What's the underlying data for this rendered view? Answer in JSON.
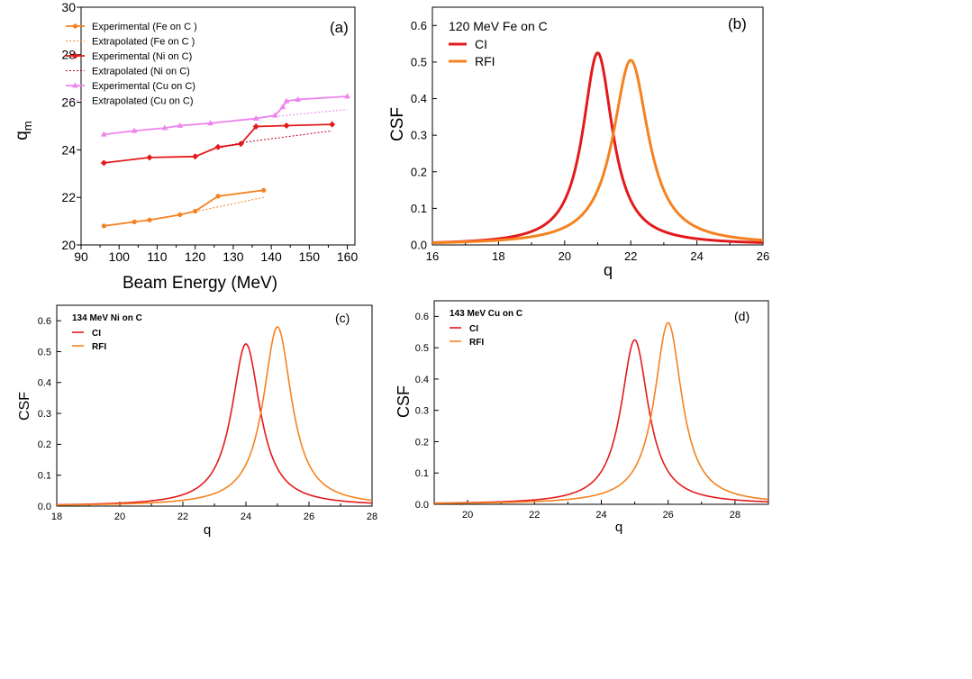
{
  "colors": {
    "fe": "#f5821f",
    "ni": "#e31a1c",
    "cu": "#ee82ee",
    "ci": "#e31a1c",
    "rfi": "#f5821f",
    "ni_extrap": "#b8001f"
  },
  "chart_data": [
    {
      "panel": "a",
      "type": "line",
      "panel_label": "(a)",
      "xlabel": "Beam Energy (MeV)",
      "ylabel": "q",
      "ylabel_sub": "m",
      "xlim": [
        90,
        162
      ],
      "ylim": [
        20,
        30
      ],
      "xticks": [
        90,
        100,
        110,
        120,
        130,
        140,
        150,
        160
      ],
      "yticks": [
        20,
        22,
        24,
        26,
        28,
        30
      ],
      "series": [
        {
          "name": "Experimental  (Fe on C )",
          "style": "solid",
          "marker": "circle",
          "color": "#f5821f",
          "x": [
            96,
            104,
            108,
            116,
            120,
            126,
            138
          ],
          "y": [
            20.8,
            20.97,
            21.05,
            21.27,
            21.42,
            22.05,
            22.3
          ]
        },
        {
          "name": "Extrapolated  (Fe on C )",
          "style": "dotted",
          "marker": "none",
          "color": "#f5821f",
          "x": [
            120,
            138
          ],
          "y": [
            21.4,
            22.0
          ]
        },
        {
          "name": "Experimental (Ni on C)",
          "style": "solid",
          "marker": "diamond",
          "color": "#e31a1c",
          "x": [
            96,
            108,
            120,
            126,
            132,
            136,
            144,
            156
          ],
          "y": [
            23.45,
            23.68,
            23.72,
            24.12,
            24.25,
            24.98,
            25.02,
            25.07
          ]
        },
        {
          "name": "Extrapolated (Ni on C)",
          "style": "dotted",
          "marker": "none",
          "color": "#b8001f",
          "x": [
            126,
            132,
            156
          ],
          "y": [
            24.05,
            24.3,
            24.8
          ]
        },
        {
          "name": "Experimental (Cu on C)",
          "style": "solid",
          "marker": "triangle",
          "color": "#ee82ee",
          "x": [
            96,
            104,
            112,
            116,
            124,
            136,
            141,
            143,
            144,
            147,
            160
          ],
          "y": [
            24.65,
            24.8,
            24.92,
            25.02,
            25.12,
            25.32,
            25.45,
            25.8,
            26.05,
            26.12,
            26.25
          ]
        },
        {
          "name": "Extrapolated  (Cu on C)",
          "style": "dotted",
          "marker": "none",
          "color": "#ee82ee",
          "x": [
            141,
            160
          ],
          "y": [
            25.4,
            25.7
          ]
        }
      ]
    },
    {
      "panel": "b",
      "type": "line",
      "panel_label": "(b)",
      "title": "120 MeV Fe on C",
      "xlabel": "q",
      "ylabel": "CSF",
      "xlim": [
        16,
        26
      ],
      "ylim": [
        0,
        0.65
      ],
      "xticks": [
        16,
        18,
        20,
        22,
        24,
        26
      ],
      "yticks": [
        0.0,
        0.1,
        0.2,
        0.3,
        0.4,
        0.5,
        0.6
      ],
      "series": [
        {
          "name": "CI",
          "shape": "lorentzian",
          "center": 21,
          "peak": 0.525,
          "hwhm": 0.55,
          "color": "#e31a1c"
        },
        {
          "name": "RFI",
          "shape": "lorentzian",
          "center": 22,
          "peak": 0.505,
          "hwhm": 0.65,
          "color": "#f5821f"
        }
      ]
    },
    {
      "panel": "c",
      "type": "line",
      "panel_label": "(c)",
      "title": "134 MeV Ni on C",
      "xlabel": "q",
      "ylabel": "CSF",
      "xlim": [
        18,
        28
      ],
      "ylim": [
        0,
        0.65
      ],
      "xticks": [
        18,
        20,
        22,
        24,
        26,
        28
      ],
      "yticks": [
        0.0,
        0.1,
        0.2,
        0.3,
        0.4,
        0.5,
        0.6
      ],
      "series": [
        {
          "name": "CI",
          "shape": "lorentzian",
          "center": 24,
          "peak": 0.525,
          "hwhm": 0.55,
          "color": "#e31a1c"
        },
        {
          "name": "RFI",
          "shape": "lorentzian",
          "center": 25,
          "peak": 0.58,
          "hwhm": 0.55,
          "color": "#f5821f"
        }
      ]
    },
    {
      "panel": "d",
      "type": "line",
      "panel_label": "(d)",
      "title": "143 MeV Cu on C",
      "xlabel": "q",
      "ylabel": "CSF",
      "xlim": [
        19,
        29
      ],
      "ylim": [
        0,
        0.65
      ],
      "xticks": [
        20,
        22,
        24,
        26,
        28
      ],
      "yticks": [
        0.0,
        0.1,
        0.2,
        0.3,
        0.4,
        0.5,
        0.6
      ],
      "series": [
        {
          "name": "CI",
          "shape": "lorentzian",
          "center": 25,
          "peak": 0.525,
          "hwhm": 0.5,
          "color": "#e31a1c"
        },
        {
          "name": "RFI",
          "shape": "lorentzian",
          "center": 26,
          "peak": 0.58,
          "hwhm": 0.5,
          "color": "#f5821f"
        }
      ]
    }
  ]
}
